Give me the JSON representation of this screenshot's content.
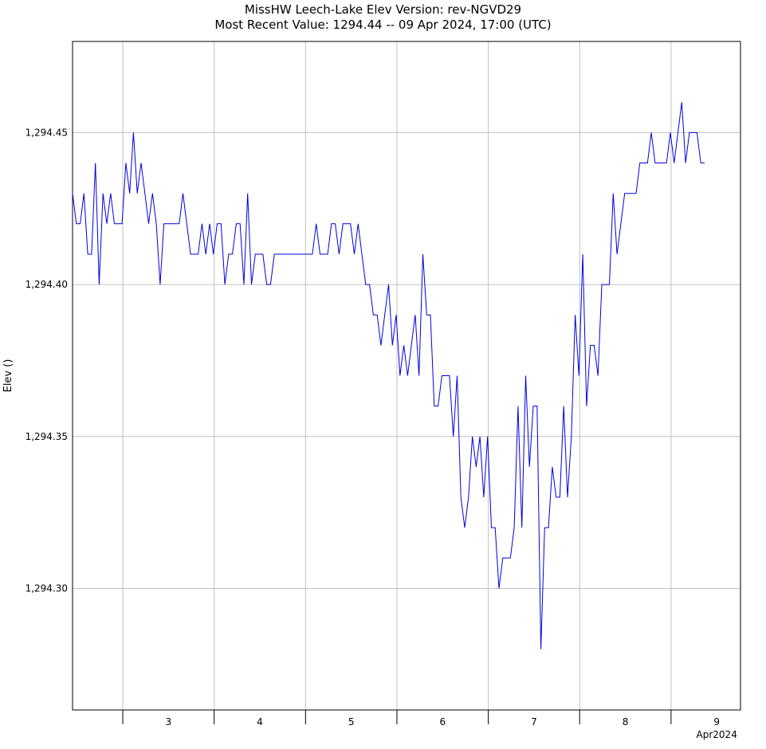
{
  "chart_data": {
    "type": "line",
    "title": "MissHW  Leech-Lake  Elev  Version: rev-NGVD29",
    "subtitle": "Most Recent Value: 1294.44  --  09 Apr 2024, 17:00 (UTC)",
    "ylabel": "Elev ()",
    "xlabel": "",
    "ylim": [
      1294.26,
      1294.48
    ],
    "y_ticks": [
      1294.3,
      1294.35,
      1294.4,
      1294.45
    ],
    "y_tick_labels": [
      "1,294.30",
      "1,294.35",
      "1,294.40",
      "1,294.45"
    ],
    "x_day_labels": [
      "3",
      "4",
      "5",
      "6",
      "7",
      "8",
      "9"
    ],
    "x_month_label": "Apr2024",
    "x_range_days": [
      2.45,
      9.76
    ],
    "grid": true,
    "series_color": "#0000dd",
    "series": [
      {
        "x_start_day": 2.45,
        "x_step_days": 0.04167,
        "values": [
          1294.43,
          1294.42,
          1294.42,
          1294.43,
          1294.41,
          1294.41,
          1294.44,
          1294.4,
          1294.43,
          1294.42,
          1294.43,
          1294.42,
          1294.42,
          1294.42,
          1294.44,
          1294.43,
          1294.45,
          1294.43,
          1294.44,
          1294.43,
          1294.42,
          1294.43,
          1294.42,
          1294.4,
          1294.42,
          1294.42,
          1294.42,
          1294.42,
          1294.42,
          1294.43,
          1294.42,
          1294.41,
          1294.41,
          1294.41,
          1294.42,
          1294.41,
          1294.42,
          1294.41,
          1294.42,
          1294.42,
          1294.4,
          1294.41,
          1294.41,
          1294.42,
          1294.42,
          1294.4,
          1294.43,
          1294.4,
          1294.41,
          1294.41,
          1294.41,
          1294.4,
          1294.4,
          1294.41,
          1294.41,
          1294.41,
          1294.41,
          1294.41,
          1294.41,
          1294.41,
          1294.41,
          1294.41,
          1294.41,
          1294.41,
          1294.42,
          1294.41,
          1294.41,
          1294.41,
          1294.42,
          1294.42,
          1294.41,
          1294.42,
          1294.42,
          1294.42,
          1294.41,
          1294.42,
          1294.41,
          1294.4,
          1294.4,
          1294.39,
          1294.39,
          1294.38,
          1294.39,
          1294.4,
          1294.38,
          1294.39,
          1294.37,
          1294.38,
          1294.37,
          1294.38,
          1294.39,
          1294.37,
          1294.41,
          1294.39,
          1294.39,
          1294.36,
          1294.36,
          1294.37,
          1294.37,
          1294.37,
          1294.35,
          1294.37,
          1294.33,
          1294.32,
          1294.33,
          1294.35,
          1294.34,
          1294.35,
          1294.33,
          1294.35,
          1294.32,
          1294.32,
          1294.3,
          1294.31,
          1294.31,
          1294.31,
          1294.32,
          1294.36,
          1294.32,
          1294.37,
          1294.34,
          1294.36,
          1294.36,
          1294.28,
          1294.32,
          1294.32,
          1294.34,
          1294.33,
          1294.33,
          1294.36,
          1294.33,
          1294.35,
          1294.39,
          1294.37,
          1294.41,
          1294.36,
          1294.38,
          1294.38,
          1294.37,
          1294.4,
          1294.4,
          1294.4,
          1294.43,
          1294.41,
          1294.42,
          1294.43,
          1294.43,
          1294.43,
          1294.43,
          1294.44,
          1294.44,
          1294.44,
          1294.45,
          1294.44,
          1294.44,
          1294.44,
          1294.44,
          1294.45,
          1294.44,
          1294.45,
          1294.46,
          1294.44,
          1294.45,
          1294.45,
          1294.45,
          1294.44,
          1294.44
        ]
      }
    ]
  }
}
